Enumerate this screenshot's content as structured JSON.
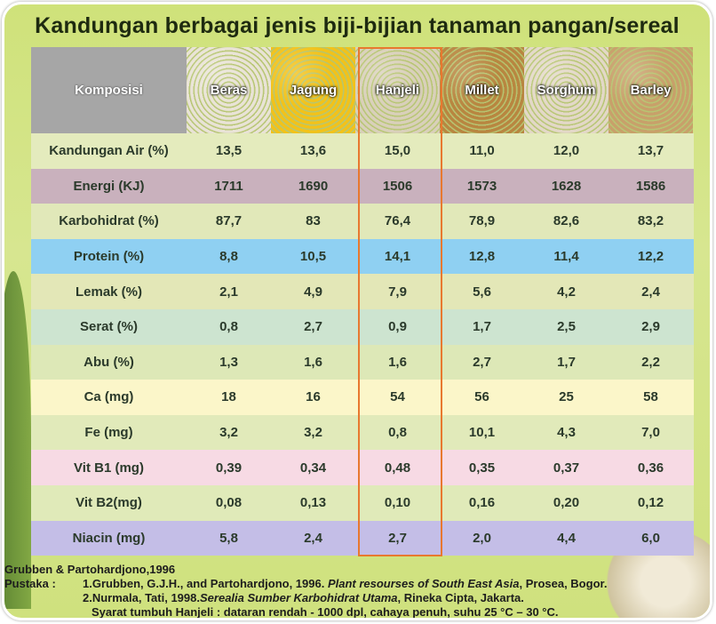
{
  "title": "Kandungan berbagai jenis biji-bijian tanaman pangan/sereal",
  "header": {
    "label": "Komposisi",
    "columns": [
      {
        "name": "Beras",
        "color": "#e9e3d6"
      },
      {
        "name": "Jagung",
        "color": "#f2c21a"
      },
      {
        "name": "Hanjeli",
        "color": "#d9d0ba"
      },
      {
        "name": "Millet",
        "color": "#b88640"
      },
      {
        "name": "Sorghum",
        "color": "#e3d8c7"
      },
      {
        "name": "Barley",
        "color": "#c8a06a"
      }
    ]
  },
  "highlight_column": "Hanjeli",
  "highlight_color": "#e8782f",
  "rows": [
    {
      "label": "Kandungan Air (%)",
      "values": [
        "13,5",
        "13,6",
        "15,0",
        "11,0",
        "12,0",
        "13,7"
      ],
      "color": "#e4ebbd"
    },
    {
      "label": "Energi (KJ)",
      "values": [
        "1711",
        "1690",
        "1506",
        "1573",
        "1628",
        "1586"
      ],
      "color": "#c9b1bd"
    },
    {
      "label": "Karbohidrat (%)",
      "values": [
        "87,7",
        "83",
        "76,4",
        "78,9",
        "82,6",
        "83,2"
      ],
      "color": "#e1e8b9"
    },
    {
      "label": "Protein (%)",
      "values": [
        "8,8",
        "10,5",
        "14,1",
        "12,8",
        "11,4",
        "12,2"
      ],
      "color": "#8fd0f2"
    },
    {
      "label": "Lemak (%)",
      "values": [
        "2,1",
        "4,9",
        "7,9",
        "5,6",
        "4,2",
        "2,4"
      ],
      "color": "#e3e7b7"
    },
    {
      "label": "Serat (%)",
      "values": [
        "0,8",
        "2,7",
        "0,9",
        "1,7",
        "2,5",
        "2,9"
      ],
      "color": "#cde4d0"
    },
    {
      "label": "Abu (%)",
      "values": [
        "1,3",
        "1,6",
        "1,6",
        "2,7",
        "1,7",
        "2,2"
      ],
      "color": "#dde8b7"
    },
    {
      "label": "Ca (mg)",
      "values": [
        "18",
        "16",
        "54",
        "56",
        "25",
        "58"
      ],
      "color": "#fbf6c9"
    },
    {
      "label": "Fe (mg)",
      "values": [
        "3,2",
        "3,2",
        "0,8",
        "10,1",
        "4,3",
        "7,0"
      ],
      "color": "#e1eaba"
    },
    {
      "label": "Vit B1 (mg)",
      "values": [
        "0,39",
        "0,34",
        "0,48",
        "0,35",
        "0,37",
        "0,36"
      ],
      "color": "#f7dae4"
    },
    {
      "label": "Vit B2(mg)",
      "values": [
        "0,08",
        "0,13",
        "0,10",
        "0,16",
        "0,20",
        "0,12"
      ],
      "color": "#e0eab9"
    },
    {
      "label": "Niacin (mg)",
      "values": [
        "5,8",
        "2,4",
        "2,7",
        "2,0",
        "4,4",
        "6,0"
      ],
      "color": "#c4bee7"
    }
  ],
  "footer": {
    "source": "Grubben & Partohardjono,1996",
    "pustaka_label": "Pustaka :",
    "ref1_a": "1.Grubben, G.J.H.,  and  Partohardjono, 1996. ",
    "ref1_title": "Plant resourses of South East Asia",
    "ref1_b": ", Prosea, Bogor.",
    "ref2_a": "2.Nurmala, Tati, 1998.",
    "ref2_title": "Serealia Sumber Karbohidrat Utama",
    "ref2_b": ", Rineka Cipta, Jakarta.",
    "note": "Syarat tumbuh Hanjeli : dataran rendah - 1000 dpl, cahaya penuh, suhu 25 °C – 30 °C."
  }
}
